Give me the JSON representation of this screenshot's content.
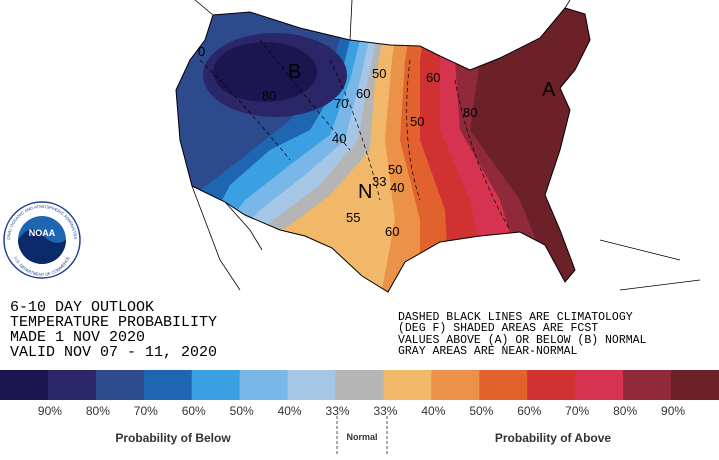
{
  "title_block": {
    "lines": [
      "6-10 DAY OUTLOOK",
      "TEMPERATURE PROBABILITY",
      "MADE  1 NOV 2020",
      "VALID  NOV 07 - 11, 2020"
    ]
  },
  "notes": {
    "lines": [
      "DASHED BLACK LINES ARE CLIMATOLOGY",
      "(DEG F) SHADED AREAS ARE FCST",
      "VALUES ABOVE (A) OR BELOW (B) NORMAL",
      "GRAY AREAS ARE NEAR-NORMAL"
    ]
  },
  "logo": {
    "text": "NOAA",
    "ring_top": "NATIONAL OCEANIC AND ATMOSPHERIC ADMINISTRATION",
    "ring_bottom": "U.S. DEPARTMENT OF COMMERCE"
  },
  "map_labels": [
    "B",
    "A",
    "N",
    "80",
    "70",
    "60",
    "50",
    "40",
    "33",
    "50",
    "40",
    "55",
    "60",
    "50",
    "60",
    "80",
    "0"
  ],
  "legend": {
    "colors": [
      "#1c1650",
      "#2a2668",
      "#2d4a8c",
      "#1f66b2",
      "#3ba0e2",
      "#79b7e8",
      "#a5c6e4",
      "#b5b5b5",
      "#f0b868",
      "#eb9148",
      "#e2622e",
      "#cf3230",
      "#d5334f",
      "#902a3a",
      "#6c2028"
    ],
    "labels": [
      "90%",
      "80%",
      "70%",
      "60%",
      "50%",
      "40%",
      "33%",
      "33%",
      "40%",
      "50%",
      "60%",
      "70%",
      "80%",
      "90%"
    ],
    "below": "Probability of Below",
    "normal": "Normal",
    "above": "Probability of Above"
  }
}
